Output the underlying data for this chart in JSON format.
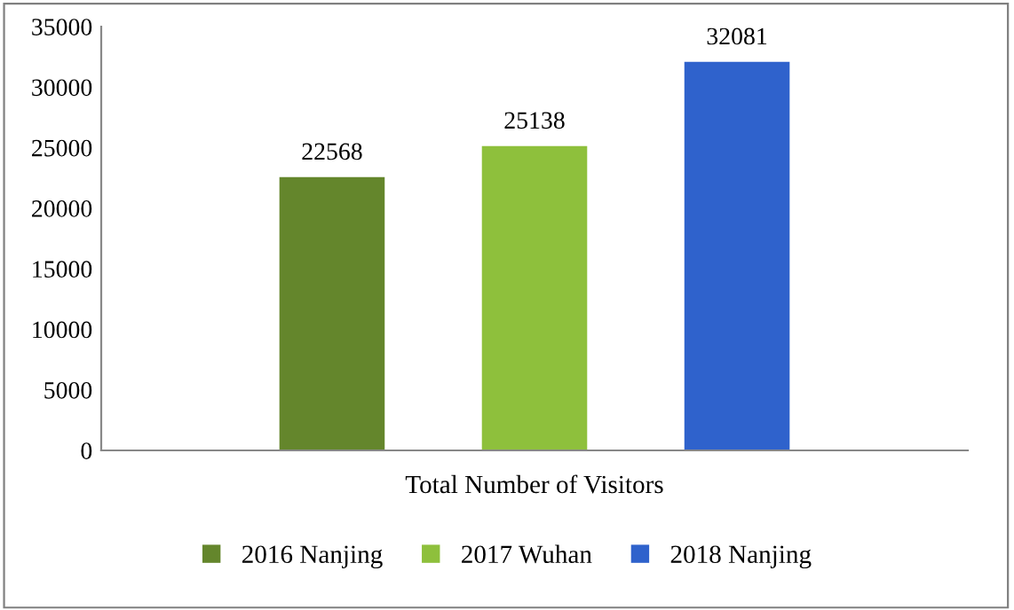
{
  "chart_data": {
    "type": "bar",
    "categories": [
      "Total Number of Visitors"
    ],
    "series": [
      {
        "name": "2016 Nanjing",
        "color": "#64862c",
        "values": [
          22568
        ]
      },
      {
        "name": "2017 Wuhan",
        "color": "#8ec03c",
        "values": [
          25138
        ]
      },
      {
        "name": "2018 Nanjing",
        "color": "#2f62cc",
        "values": [
          32081
        ]
      }
    ],
    "ylim": [
      0,
      35000
    ],
    "yticks": [
      0,
      5000,
      10000,
      15000,
      20000,
      25000,
      30000,
      35000
    ],
    "grid": false,
    "legend": "bottom",
    "data_labels": true
  }
}
